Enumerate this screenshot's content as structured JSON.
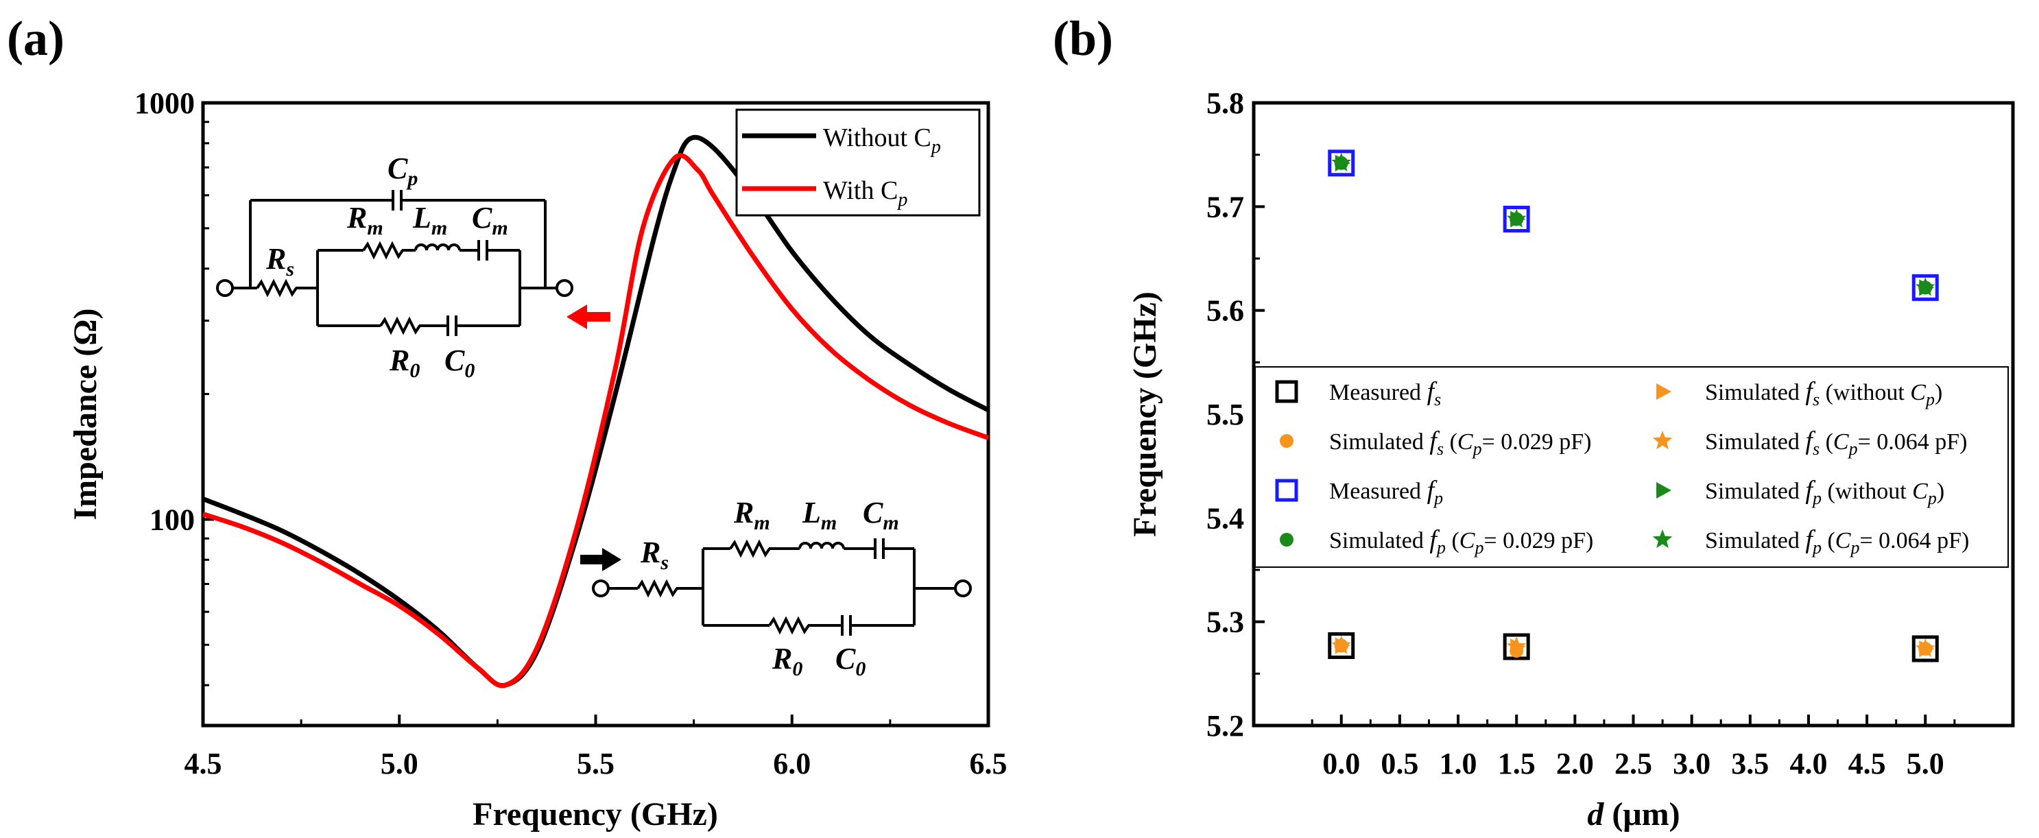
{
  "chart_data": [
    {
      "panel_label": "(a)",
      "type": "line",
      "xlabel": "Frequency (GHz)",
      "ylabel": "Impedance (Ω)",
      "xlim": [
        4.5,
        6.5
      ],
      "ylim": [
        32,
        1000
      ],
      "yscale": "log",
      "xticks": [
        "4.5",
        "5.0",
        "5.5",
        "6.0",
        "6.5"
      ],
      "yticks": [
        "100",
        "1000"
      ],
      "legend": [
        "Without C",
        "With C"
      ],
      "legend_sub": "p",
      "series": [
        {
          "name": "Without Cp",
          "color": "#000000",
          "x": [
            4.5,
            4.6,
            4.7,
            4.8,
            4.9,
            5.0,
            5.1,
            5.2,
            5.27,
            5.35,
            5.45,
            5.55,
            5.65,
            5.7,
            5.74,
            5.8,
            5.9,
            6.0,
            6.1,
            6.2,
            6.3,
            6.4,
            6.5
          ],
          "y": [
            112,
            103,
            94,
            84,
            74,
            64,
            54,
            44,
            40,
            48,
            90,
            200,
            480,
            690,
            820,
            780,
            600,
            440,
            340,
            275,
            235,
            205,
            183
          ]
        },
        {
          "name": "With Cp",
          "color": "#ff0000",
          "x": [
            4.5,
            4.6,
            4.7,
            4.8,
            4.9,
            5.0,
            5.1,
            5.2,
            5.27,
            5.35,
            5.45,
            5.55,
            5.62,
            5.7,
            5.76,
            5.8,
            5.9,
            6.0,
            6.1,
            6.2,
            6.3,
            6.4,
            6.5
          ],
          "y": [
            103,
            96,
            88,
            79,
            70,
            62,
            53,
            44,
            40,
            49,
            94,
            230,
            500,
            735,
            690,
            600,
            430,
            320,
            255,
            215,
            188,
            170,
            157
          ]
        }
      ],
      "circuit_labels": {
        "Rs": "R",
        "Rs_sub": "s",
        "Rm": "R",
        "Rm_sub": "m",
        "Lm": "L",
        "Lm_sub": "m",
        "Cm": "C",
        "Cm_sub": "m",
        "R0": "R",
        "R0_sub": "0",
        "C0": "C",
        "C0_sub": "0",
        "Cp": "C",
        "Cp_sub": "p"
      }
    },
    {
      "panel_label": "(b)",
      "type": "scatter",
      "xlabel": "d",
      "xlabel_unit": " (μm)",
      "ylabel": "Frequency (GHz)",
      "xlim": [
        -0.75,
        5.75
      ],
      "ylim": [
        5.2,
        5.8
      ],
      "xticks": [
        "0.0",
        "0.5",
        "1.0",
        "1.5",
        "2.0",
        "2.5",
        "3.0",
        "3.5",
        "4.0",
        "4.5",
        "5.0"
      ],
      "yticks": [
        "5.2",
        "5.3",
        "5.4",
        "5.5",
        "5.6",
        "5.7",
        "5.8"
      ],
      "series": [
        {
          "name": "Measured fs",
          "marker": "square",
          "color": "#000000",
          "x": [
            0,
            1.5,
            5.0
          ],
          "y": [
            5.277,
            5.276,
            5.274
          ]
        },
        {
          "name": "Simulated fs (Cp= 0.029 pF)",
          "marker": "circle",
          "color": "#f7941d",
          "x": [
            0,
            1.5,
            5.0
          ],
          "y": [
            5.277,
            5.272,
            5.274
          ]
        },
        {
          "name": "Measured fp",
          "marker": "square",
          "color": "#1a1aff",
          "x": [
            0,
            1.5,
            5.0
          ],
          "y": [
            5.742,
            5.688,
            5.622
          ]
        },
        {
          "name": "Simulated fp (Cp= 0.029 pF)",
          "marker": "circle",
          "color": "#1a8a1a",
          "x": [
            0,
            1.5,
            5.0
          ],
          "y": [
            5.742,
            5.688,
            5.622
          ]
        },
        {
          "name": "Simulated fs (without Cp)",
          "marker": "triangle-right",
          "color": "#f7941d",
          "x": [
            0,
            1.5,
            5.0
          ],
          "y": [
            5.277,
            5.276,
            5.274
          ]
        },
        {
          "name": "Simulated fs (Cp= 0.064 pF)",
          "marker": "star",
          "color": "#f7941d",
          "x": [
            0,
            1.5,
            5.0
          ],
          "y": [
            5.277,
            5.276,
            5.274
          ]
        },
        {
          "name": "Simulated fp (without Cp)",
          "marker": "triangle-right",
          "color": "#1a8a1a",
          "x": [
            0,
            1.5,
            5.0
          ],
          "y": [
            5.742,
            5.688,
            5.622
          ]
        },
        {
          "name": "Simulated fp (Cp= 0.064 pF)",
          "marker": "star",
          "color": "#1a8a1a",
          "x": [
            0,
            1.5,
            5.0
          ],
          "y": [
            5.742,
            5.688,
            5.622
          ]
        }
      ],
      "legend": [
        {
          "pre": "Measured ",
          "f": "f",
          "fsub": "s",
          "post": ""
        },
        {
          "pre": "Simulated ",
          "f": "f",
          "fsub": "s",
          "post": " (without ",
          "c": "C",
          "csub": "p",
          "end": ")"
        },
        {
          "pre": "Simulated ",
          "f": "f",
          "fsub": "s",
          "post": " (",
          "c": "C",
          "csub": "p",
          "end": "= 0.029 pF)"
        },
        {
          "pre": "Simulated ",
          "f": "f",
          "fsub": "s",
          "post": " (",
          "c": "C",
          "csub": "p",
          "end": "= 0.064 pF)"
        },
        {
          "pre": "Measured ",
          "f": "f",
          "fsub": "p",
          "post": ""
        },
        {
          "pre": "Simulated ",
          "f": "f",
          "fsub": "p",
          "post": " (without ",
          "c": "C",
          "csub": "p",
          "end": ")"
        },
        {
          "pre": "Simulated ",
          "f": "f",
          "fsub": "p",
          "post": " (",
          "c": "C",
          "csub": "p",
          "end": "= 0.029 pF)"
        },
        {
          "pre": "Simulated ",
          "f": "f",
          "fsub": "p",
          "post": " (",
          "c": "C",
          "csub": "p",
          "end": "= 0.064 pF)"
        }
      ]
    }
  ]
}
